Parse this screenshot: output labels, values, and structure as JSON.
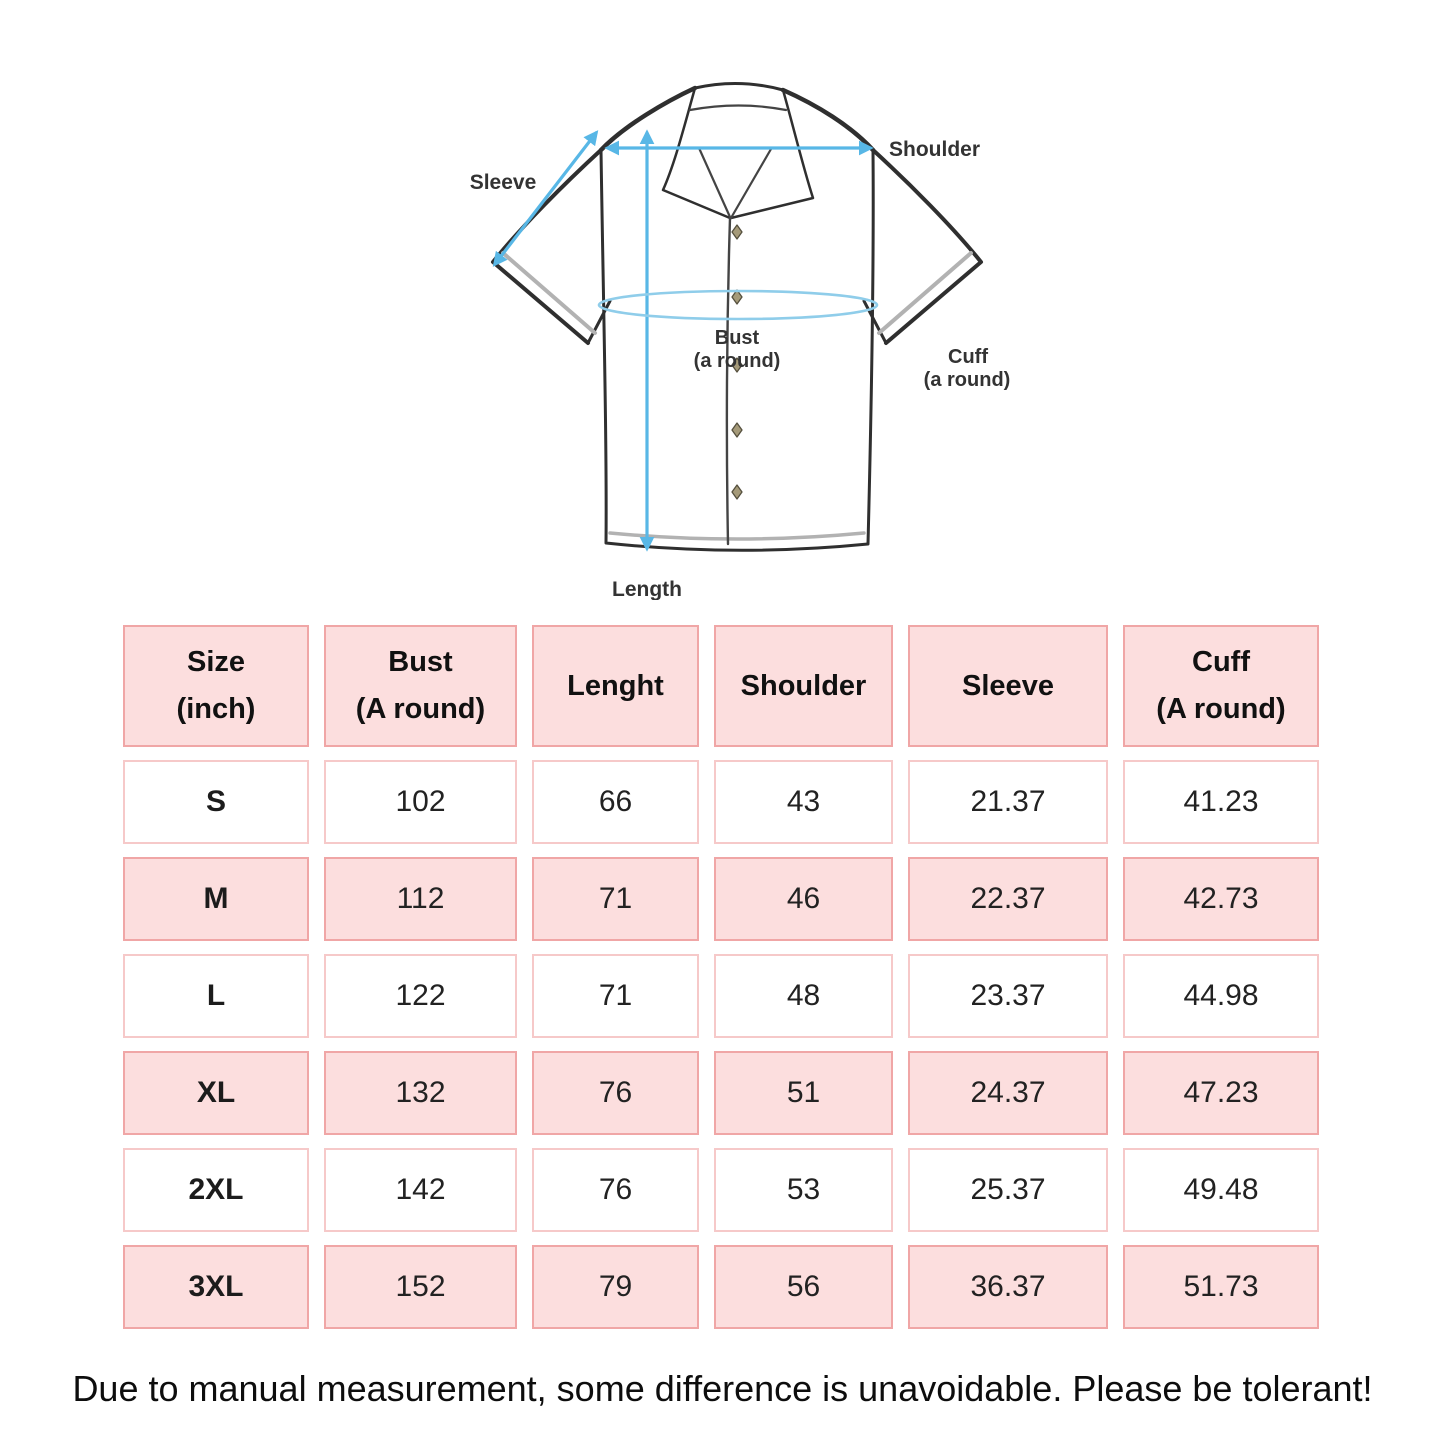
{
  "diagram": {
    "labels": {
      "sleeve": "Sleeve",
      "shoulder": "Shoulder",
      "bust_line1": "Bust",
      "bust_line2": "(a round)",
      "cuff_line1": "Cuff",
      "cuff_line2": "(a round)",
      "length": "Length"
    },
    "colors": {
      "arrow_blue": "#58b7e6",
      "ellipse_blue": "#8fcdea",
      "outline_dark": "#2f2f2f",
      "stitch_gray": "#b2b2b2"
    }
  },
  "table": {
    "headers": [
      [
        "Size",
        "(inch)"
      ],
      [
        "Bust",
        "(A round)"
      ],
      [
        "Lenght"
      ],
      [
        "Shoulder"
      ],
      [
        "Sleeve"
      ],
      [
        "Cuff",
        "(A round)"
      ]
    ],
    "rows": [
      {
        "size": "S",
        "values": [
          "102",
          "66",
          "43",
          "21.37",
          "41.23"
        ]
      },
      {
        "size": "M",
        "values": [
          "112",
          "71",
          "46",
          "22.37",
          "42.73"
        ]
      },
      {
        "size": "L",
        "values": [
          "122",
          "71",
          "48",
          "23.37",
          "44.98"
        ]
      },
      {
        "size": "XL",
        "values": [
          "132",
          "76",
          "51",
          "24.37",
          "47.23"
        ]
      },
      {
        "size": "2XL",
        "values": [
          "142",
          "76",
          "53",
          "25.37",
          "49.48"
        ]
      },
      {
        "size": "3XL",
        "values": [
          "152",
          "79",
          "56",
          "36.37",
          "51.73"
        ]
      }
    ],
    "colors": {
      "cell_pink": "#fcdede",
      "border_strong": "#f0a6a6",
      "border_light": "#f6c9c9"
    }
  },
  "footer": {
    "note": "Due to manual measurement, some difference is unavoidable. Please be tolerant!"
  }
}
